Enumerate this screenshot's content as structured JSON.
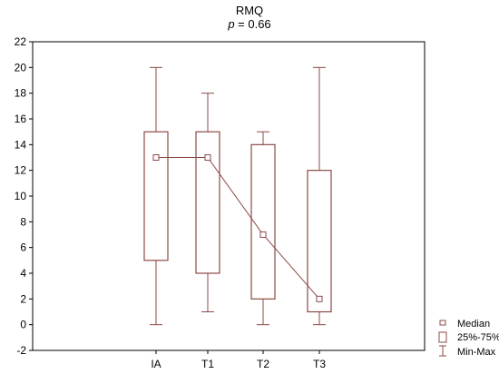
{
  "chart_data": {
    "type": "box",
    "title": "RMQ",
    "subtitle_var": "p",
    "subtitle_rest": " = 0.66",
    "categories": [
      "IA",
      "T1",
      "T2",
      "T3"
    ],
    "boxes": [
      {
        "category": "IA",
        "min": 0,
        "q1": 5,
        "median": 13,
        "q3": 15,
        "max": 20
      },
      {
        "category": "T1",
        "min": 1,
        "q1": 4,
        "median": 13,
        "q3": 15,
        "max": 18
      },
      {
        "category": "T2",
        "min": 0,
        "q1": 2,
        "median": 7,
        "q3": 14,
        "max": 15
      },
      {
        "category": "T3",
        "min": 0,
        "q1": 1,
        "median": 2,
        "q3": 12,
        "max": 20
      }
    ],
    "ylim": [
      -2,
      22
    ],
    "yticks": [
      -2,
      0,
      2,
      4,
      6,
      8,
      10,
      12,
      14,
      16,
      18,
      20,
      22
    ],
    "grid": false,
    "legend_position": "right-bottom",
    "legend": [
      {
        "symbol": "median",
        "label": "Median"
      },
      {
        "symbol": "box",
        "label": "25%-75%"
      },
      {
        "symbol": "whisker",
        "label": "Min-Max"
      }
    ],
    "colors": {
      "box": "#8b4a44",
      "median_line": "#8b4a44",
      "axis": "#000000"
    }
  }
}
